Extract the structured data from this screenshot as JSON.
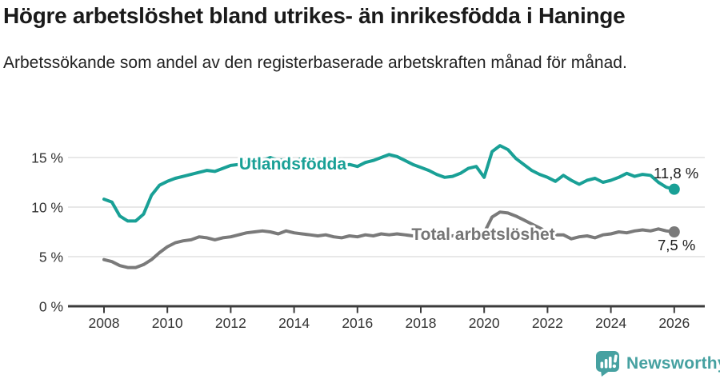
{
  "header": {
    "title": "Högre arbetslöshet bland utrikes- än inrikesfödda i Haninge",
    "subtitle": "Arbetssökande som andel av den registerbaserade arbetskraften månad för månad."
  },
  "chart_data": {
    "type": "line",
    "title": "Högre arbetslöshet bland utrikes- än inrikesfödda i Haninge",
    "subtitle": "Arbetssökande som andel av den registerbaserade arbetskraften månad för månad.",
    "unit": "%",
    "grid": "horizontal-light",
    "legend": "inline-series-labels",
    "ylim": [
      0,
      17
    ],
    "xlim": [
      2007.6,
      2027.4
    ],
    "yticks": [
      {
        "v": 0,
        "label": "0 %"
      },
      {
        "v": 5,
        "label": "5 %"
      },
      {
        "v": 10,
        "label": "10 %"
      },
      {
        "v": 15,
        "label": "15 %"
      }
    ],
    "xticks": [
      {
        "v": 2008,
        "label": "2008"
      },
      {
        "v": 2010,
        "label": "2010"
      },
      {
        "v": 2012,
        "label": "2012"
      },
      {
        "v": 2014,
        "label": "2014"
      },
      {
        "v": 2016,
        "label": "2016"
      },
      {
        "v": 2018,
        "label": "2018"
      },
      {
        "v": 2020,
        "label": "2020"
      },
      {
        "v": 2022,
        "label": "2022"
      },
      {
        "v": 2024,
        "label": "2024"
      },
      {
        "v": 2026,
        "label": "2026"
      }
    ],
    "x_unit": "year (quarterly samples)",
    "x": [
      2008,
      2008.25,
      2008.5,
      2008.75,
      2009,
      2009.25,
      2009.5,
      2009.75,
      2010,
      2010.25,
      2010.5,
      2010.75,
      2011,
      2011.25,
      2011.5,
      2011.75,
      2012,
      2012.25,
      2012.5,
      2012.75,
      2013,
      2013.25,
      2013.5,
      2013.75,
      2014,
      2014.25,
      2014.5,
      2014.75,
      2015,
      2015.25,
      2015.5,
      2015.75,
      2016,
      2016.25,
      2016.5,
      2016.75,
      2017,
      2017.25,
      2017.5,
      2017.75,
      2018,
      2018.25,
      2018.5,
      2018.75,
      2019,
      2019.25,
      2019.5,
      2019.75,
      2020,
      2020.25,
      2020.5,
      2020.75,
      2021,
      2021.25,
      2021.5,
      2021.75,
      2022,
      2022.25,
      2022.5,
      2022.75,
      2023,
      2023.25,
      2023.5,
      2023.75,
      2024,
      2024.25,
      2024.5,
      2024.75,
      2025,
      2025.25,
      2025.5,
      2025.75,
      2026
    ],
    "series": [
      {
        "name": "Utlandsfödda",
        "color": "#19A096",
        "label_color": "#19A096",
        "end_value": 11.8,
        "end_value_label": "11,8 %",
        "values": [
          10.8,
          10.5,
          9.1,
          8.6,
          8.6,
          9.3,
          11.2,
          12.2,
          12.6,
          12.9,
          13.1,
          13.3,
          13.5,
          13.7,
          13.6,
          13.9,
          14.2,
          14.3,
          14.6,
          14.4,
          14.7,
          15.0,
          14.7,
          14.8,
          14.6,
          14.9,
          14.7,
          14.4,
          14.4,
          14.2,
          14.1,
          14.3,
          14.1,
          14.5,
          14.7,
          15.0,
          15.3,
          15.1,
          14.7,
          14.3,
          14.0,
          13.7,
          13.3,
          13.0,
          13.1,
          13.4,
          13.9,
          14.1,
          13.0,
          15.6,
          16.2,
          15.8,
          14.9,
          14.3,
          13.7,
          13.3,
          13.0,
          12.6,
          13.2,
          12.7,
          12.3,
          12.7,
          12.9,
          12.5,
          12.7,
          13.0,
          13.4,
          13.1,
          13.3,
          13.2,
          12.5,
          12.0,
          11.8
        ]
      },
      {
        "name": "Total arbetslöshet",
        "color": "#7A7A7A",
        "label_color": "#757575",
        "end_value": 7.5,
        "end_value_label": "7,5 %",
        "values": [
          4.7,
          4.5,
          4.1,
          3.9,
          3.9,
          4.2,
          4.7,
          5.4,
          6.0,
          6.4,
          6.6,
          6.7,
          7.0,
          6.9,
          6.7,
          6.9,
          7.0,
          7.2,
          7.4,
          7.5,
          7.6,
          7.5,
          7.3,
          7.6,
          7.4,
          7.3,
          7.2,
          7.1,
          7.2,
          7.0,
          6.9,
          7.1,
          7.0,
          7.2,
          7.1,
          7.3,
          7.2,
          7.3,
          7.2,
          7.1,
          7.0,
          7.1,
          6.9,
          7.0,
          7.1,
          7.2,
          7.3,
          7.2,
          7.4,
          9.0,
          9.5,
          9.4,
          9.1,
          8.7,
          8.3,
          7.9,
          7.5,
          7.2,
          7.2,
          6.8,
          7.0,
          7.1,
          6.9,
          7.2,
          7.3,
          7.5,
          7.4,
          7.6,
          7.7,
          7.6,
          7.8,
          7.6,
          7.5
        ]
      }
    ]
  },
  "footer": {
    "brand": "Newsworthy",
    "logo_icon": "newsworthy-speech-bubble-bar-chart-icon"
  },
  "colors": {
    "accent_teal": "#19A096",
    "series_gray": "#7A7A7A",
    "series_label_gray": "#757575",
    "annotation_text": "#1A1A1A",
    "axis": "#3B3B3B",
    "tick_text": "#333333",
    "grid": "#E0E0E0",
    "brand_teal": "#46A1A1",
    "background": "#FFFFFF"
  }
}
